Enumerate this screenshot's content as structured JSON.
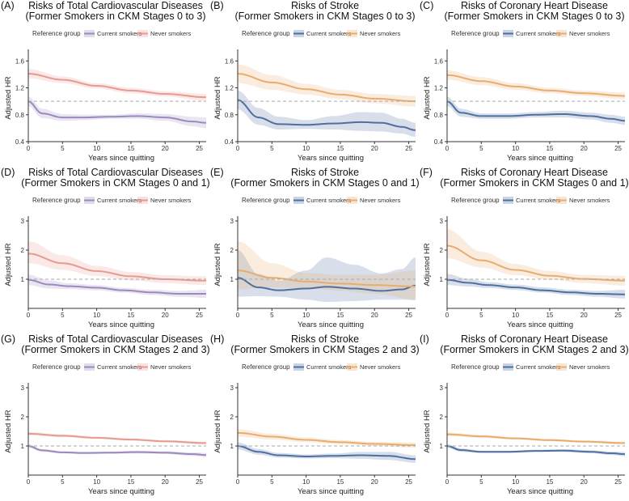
{
  "colors": {
    "purple": "#9c89bd",
    "salmon": "#e79a92",
    "blue": "#4f6fa0",
    "orange": "#e9ac6e",
    "reference_line": "#aaaaaa",
    "axis": "#333333"
  },
  "chart_data": [
    {
      "id": "A",
      "type": "line",
      "label": "(A)",
      "title": [
        "Risks of Total Cardiovascular Diseases",
        "(Former Smokers in CKM Stages 0 to 3)"
      ],
      "xlabel": "Years since quitting",
      "ylabel": "Adjusted HR",
      "xlim": [
        0,
        26
      ],
      "ylim": [
        0.4,
        1.7
      ],
      "xticks": [
        0,
        5,
        10,
        15,
        20,
        25
      ],
      "yticks": [
        0.4,
        0.8,
        1.2,
        1.6
      ],
      "ytick_labels": [
        "0.4",
        "0.8",
        "1.2",
        "1.6"
      ],
      "reference_y": 1.0,
      "legend_title": "Reference group",
      "series": [
        {
          "name": "Current smokers",
          "color": "#9c89bd",
          "x": [
            0,
            2,
            5,
            8,
            12,
            16,
            20,
            24,
            26
          ],
          "y": [
            1.0,
            0.82,
            0.76,
            0.76,
            0.77,
            0.78,
            0.76,
            0.7,
            0.68
          ],
          "lower": [
            0.93,
            0.75,
            0.71,
            0.72,
            0.74,
            0.74,
            0.71,
            0.63,
            0.6
          ],
          "upper": [
            1.07,
            0.89,
            0.81,
            0.8,
            0.8,
            0.82,
            0.81,
            0.77,
            0.76
          ]
        },
        {
          "name": "Never smokers",
          "color": "#e79a92",
          "x": [
            0,
            5,
            10,
            15,
            20,
            26
          ],
          "y": [
            1.41,
            1.32,
            1.23,
            1.16,
            1.11,
            1.06
          ],
          "lower": [
            1.34,
            1.27,
            1.19,
            1.12,
            1.07,
            1.01
          ],
          "upper": [
            1.48,
            1.37,
            1.27,
            1.2,
            1.15,
            1.11
          ]
        }
      ]
    },
    {
      "id": "B",
      "type": "line",
      "label": "(B)",
      "title": [
        "Risks of Stroke",
        "(Former Smokers in CKM Stages 0 to 3)"
      ],
      "xlabel": "Years since quitting",
      "ylabel": "Adjusted HR",
      "xlim": [
        0,
        26
      ],
      "ylim": [
        0.4,
        1.7
      ],
      "xticks": [
        0,
        5,
        10,
        15,
        20,
        25
      ],
      "yticks": [
        0.4,
        0.8,
        1.2,
        1.6
      ],
      "ytick_labels": [
        "0.4",
        "0.8",
        "1.2",
        "1.6"
      ],
      "reference_y": 1.0,
      "legend_title": "Reference group",
      "series": [
        {
          "name": "Current smokers",
          "color": "#4f6fa0",
          "x": [
            0,
            3,
            6,
            10,
            14,
            18,
            21,
            24,
            26
          ],
          "y": [
            1.02,
            0.76,
            0.66,
            0.65,
            0.67,
            0.69,
            0.68,
            0.62,
            0.57
          ],
          "lower": [
            0.88,
            0.65,
            0.58,
            0.59,
            0.58,
            0.56,
            0.55,
            0.52,
            0.47
          ],
          "upper": [
            1.16,
            0.9,
            0.77,
            0.72,
            0.78,
            0.84,
            0.83,
            0.74,
            0.68
          ]
        },
        {
          "name": "Never smokers",
          "color": "#e9ac6e",
          "x": [
            0,
            5,
            10,
            15,
            20,
            26
          ],
          "y": [
            1.41,
            1.28,
            1.18,
            1.1,
            1.04,
            1.0
          ],
          "lower": [
            1.27,
            1.17,
            1.1,
            1.03,
            0.97,
            0.92
          ],
          "upper": [
            1.55,
            1.39,
            1.26,
            1.17,
            1.11,
            1.08
          ]
        }
      ]
    },
    {
      "id": "C",
      "type": "line",
      "label": "(C)",
      "title": [
        "Risks of Coronary Heart Disease",
        "(Former Smokers in CKM Stages 0 to 3)"
      ],
      "xlabel": "Years since quitting",
      "ylabel": "Adjusted HR",
      "xlim": [
        0,
        26
      ],
      "ylim": [
        0.4,
        1.7
      ],
      "xticks": [
        0,
        5,
        10,
        15,
        20,
        25
      ],
      "yticks": [
        0.4,
        0.8,
        1.2,
        1.6
      ],
      "ytick_labels": [
        "0.4",
        "0.8",
        "1.2",
        "1.6"
      ],
      "reference_y": 1.0,
      "legend_title": "Reference group",
      "series": [
        {
          "name": "Current smokers",
          "color": "#4f6fa0",
          "x": [
            0,
            2,
            5,
            9,
            13,
            17,
            21,
            24,
            26
          ],
          "y": [
            1.0,
            0.83,
            0.78,
            0.78,
            0.8,
            0.81,
            0.78,
            0.74,
            0.71
          ],
          "lower": [
            0.93,
            0.77,
            0.74,
            0.74,
            0.76,
            0.76,
            0.73,
            0.68,
            0.65
          ],
          "upper": [
            1.07,
            0.89,
            0.82,
            0.82,
            0.84,
            0.86,
            0.83,
            0.8,
            0.77
          ]
        },
        {
          "name": "Never smokers",
          "color": "#e9ac6e",
          "x": [
            0,
            5,
            10,
            15,
            20,
            26
          ],
          "y": [
            1.39,
            1.3,
            1.22,
            1.16,
            1.12,
            1.08
          ],
          "lower": [
            1.32,
            1.24,
            1.17,
            1.12,
            1.08,
            1.03
          ],
          "upper": [
            1.46,
            1.36,
            1.27,
            1.2,
            1.16,
            1.13
          ]
        }
      ]
    },
    {
      "id": "D",
      "type": "line",
      "label": "(D)",
      "title": [
        "Risks of Total Cardiovascular Diseases",
        "(Former Smokers in CKM Stages 0 and 1)"
      ],
      "xlabel": "Years since quitting",
      "ylabel": "Adjusted HR",
      "xlim": [
        0,
        26
      ],
      "ylim": [
        0,
        3
      ],
      "xticks": [
        0,
        5,
        10,
        15,
        20,
        25
      ],
      "yticks": [
        1,
        2,
        3
      ],
      "ytick_labels": [
        "1",
        "2",
        "3"
      ],
      "reference_y": 1.0,
      "legend_title": "Reference group",
      "series": [
        {
          "name": "Current smokers",
          "color": "#9c89bd",
          "x": [
            0,
            3,
            6,
            10,
            14,
            18,
            22,
            26
          ],
          "y": [
            0.98,
            0.82,
            0.76,
            0.71,
            0.62,
            0.55,
            0.5,
            0.5
          ],
          "lower": [
            0.8,
            0.68,
            0.66,
            0.62,
            0.54,
            0.46,
            0.4,
            0.36
          ],
          "upper": [
            1.16,
            0.96,
            0.86,
            0.8,
            0.7,
            0.64,
            0.6,
            0.64
          ]
        },
        {
          "name": "Never smokers",
          "color": "#e79a92",
          "x": [
            0,
            5,
            10,
            15,
            20,
            26
          ],
          "y": [
            1.88,
            1.55,
            1.28,
            1.1,
            1.0,
            0.95
          ],
          "lower": [
            1.55,
            1.32,
            1.11,
            0.96,
            0.87,
            0.8
          ],
          "upper": [
            2.3,
            1.82,
            1.46,
            1.25,
            1.14,
            1.1
          ]
        }
      ]
    },
    {
      "id": "E",
      "type": "line",
      "label": "(E)",
      "title": [
        "Risks of Stroke",
        "(Former Smokers in CKM Stages 0 and 1)"
      ],
      "xlabel": "Years since quitting",
      "ylabel": "Adjusted HR",
      "xlim": [
        0,
        26
      ],
      "ylim": [
        0,
        3
      ],
      "xticks": [
        0,
        5,
        10,
        15,
        20,
        25
      ],
      "yticks": [
        1,
        2,
        3
      ],
      "ytick_labels": [
        "1",
        "2",
        "3"
      ],
      "reference_y": 1.0,
      "legend_title": "Reference group",
      "series": [
        {
          "name": "Current smokers",
          "color": "#4f6fa0",
          "x": [
            0,
            3,
            6,
            10,
            13,
            17,
            21,
            24,
            26
          ],
          "y": [
            1.05,
            0.72,
            0.62,
            0.68,
            0.74,
            0.68,
            0.6,
            0.65,
            0.78
          ],
          "lower": [
            0.4,
            0.42,
            0.4,
            0.3,
            0.22,
            0.25,
            0.3,
            0.3,
            0.28
          ],
          "upper": [
            2.0,
            1.18,
            0.95,
            1.3,
            1.75,
            1.5,
            1.2,
            1.35,
            1.75
          ]
        },
        {
          "name": "Never smokers",
          "color": "#e9ac6e",
          "x": [
            0,
            5,
            10,
            15,
            20,
            26
          ],
          "y": [
            1.3,
            1.05,
            0.92,
            0.85,
            0.8,
            0.75
          ],
          "lower": [
            0.65,
            0.72,
            0.7,
            0.6,
            0.5,
            0.3
          ],
          "upper": [
            2.3,
            1.55,
            1.22,
            1.15,
            1.15,
            1.3
          ]
        }
      ]
    },
    {
      "id": "F",
      "type": "line",
      "label": "(F)",
      "title": [
        "Risks of Coronary Heart Disease",
        "(Former Smokers in CKM Stages 0 and 1)"
      ],
      "xlabel": "Years since quitting",
      "ylabel": "Adjusted HR",
      "xlim": [
        0,
        26
      ],
      "ylim": [
        0,
        3
      ],
      "xticks": [
        0,
        5,
        10,
        15,
        20,
        25
      ],
      "yticks": [
        1,
        2,
        3
      ],
      "ytick_labels": [
        "1",
        "2",
        "3"
      ],
      "reference_y": 1.0,
      "legend_title": "Reference group",
      "series": [
        {
          "name": "Current smokers",
          "color": "#4f6fa0",
          "x": [
            0,
            3,
            6,
            10,
            14,
            18,
            22,
            26
          ],
          "y": [
            0.98,
            0.88,
            0.8,
            0.72,
            0.62,
            0.55,
            0.5,
            0.48
          ],
          "lower": [
            0.8,
            0.75,
            0.7,
            0.63,
            0.54,
            0.46,
            0.4,
            0.34
          ],
          "upper": [
            1.18,
            1.02,
            0.9,
            0.82,
            0.72,
            0.64,
            0.6,
            0.64
          ]
        },
        {
          "name": "Never smokers",
          "color": "#e9ac6e",
          "x": [
            0,
            5,
            10,
            15,
            20,
            26
          ],
          "y": [
            2.15,
            1.65,
            1.32,
            1.12,
            1.01,
            0.95
          ],
          "lower": [
            1.72,
            1.4,
            1.14,
            0.98,
            0.87,
            0.78
          ],
          "upper": [
            2.72,
            1.95,
            1.52,
            1.28,
            1.15,
            1.12
          ]
        }
      ]
    },
    {
      "id": "G",
      "type": "line",
      "label": "(G)",
      "title": [
        "Risks of Total Cardiovascular Diseases",
        "(Former Smokers in CKM Stages 2 and 3)"
      ],
      "xlabel": "Years since quitting",
      "ylabel": "Adjusted HR",
      "xlim": [
        0,
        26
      ],
      "ylim": [
        0,
        3
      ],
      "xticks": [
        0,
        5,
        10,
        15,
        20,
        25
      ],
      "yticks": [
        1,
        2,
        3
      ],
      "ytick_labels": [
        "1",
        "2",
        "3"
      ],
      "reference_y": 1.0,
      "legend_title": "Reference group",
      "series": [
        {
          "name": "Current smokers",
          "color": "#9c89bd",
          "x": [
            0,
            2,
            5,
            8,
            12,
            16,
            20,
            24,
            26
          ],
          "y": [
            1.0,
            0.85,
            0.78,
            0.76,
            0.77,
            0.79,
            0.77,
            0.72,
            0.69
          ],
          "lower": [
            0.94,
            0.8,
            0.74,
            0.72,
            0.73,
            0.74,
            0.72,
            0.66,
            0.62
          ],
          "upper": [
            1.06,
            0.9,
            0.82,
            0.8,
            0.81,
            0.84,
            0.82,
            0.78,
            0.76
          ]
        },
        {
          "name": "Never smokers",
          "color": "#e79a92",
          "x": [
            0,
            5,
            10,
            15,
            20,
            26
          ],
          "y": [
            1.42,
            1.35,
            1.28,
            1.22,
            1.16,
            1.1
          ],
          "lower": [
            1.36,
            1.3,
            1.24,
            1.18,
            1.12,
            1.05
          ],
          "upper": [
            1.48,
            1.4,
            1.32,
            1.26,
            1.2,
            1.15
          ]
        }
      ]
    },
    {
      "id": "H",
      "type": "line",
      "label": "(H)",
      "title": [
        "Risks of Stroke",
        "(Former Smokers in CKM Stages 2 and 3)"
      ],
      "xlabel": "Years since quitting",
      "ylabel": "Adjusted HR",
      "xlim": [
        0,
        26
      ],
      "ylim": [
        0,
        3
      ],
      "xticks": [
        0,
        5,
        10,
        15,
        20,
        25
      ],
      "yticks": [
        1,
        2,
        3
      ],
      "ytick_labels": [
        "1",
        "2",
        "3"
      ],
      "reference_y": 1.0,
      "legend_title": "Reference group",
      "series": [
        {
          "name": "Current smokers",
          "color": "#4f6fa0",
          "x": [
            0,
            3,
            6,
            10,
            14,
            18,
            22,
            26
          ],
          "y": [
            1.0,
            0.8,
            0.68,
            0.64,
            0.66,
            0.68,
            0.66,
            0.55
          ],
          "lower": [
            0.88,
            0.7,
            0.6,
            0.57,
            0.58,
            0.56,
            0.52,
            0.42
          ],
          "upper": [
            1.12,
            0.9,
            0.76,
            0.71,
            0.74,
            0.8,
            0.8,
            0.68
          ]
        },
        {
          "name": "Never smokers",
          "color": "#e9ac6e",
          "x": [
            0,
            5,
            10,
            15,
            20,
            26
          ],
          "y": [
            1.45,
            1.32,
            1.21,
            1.13,
            1.07,
            1.03
          ],
          "lower": [
            1.32,
            1.22,
            1.13,
            1.06,
            1.0,
            0.94
          ],
          "upper": [
            1.58,
            1.42,
            1.29,
            1.2,
            1.14,
            1.12
          ]
        }
      ]
    },
    {
      "id": "I",
      "type": "line",
      "label": "(I)",
      "title": [
        "Risks of Coronary Heart Disease",
        "(Former Smokers in CKM Stages 2 and 3)"
      ],
      "xlabel": "Years since quitting",
      "ylabel": "Adjusted HR",
      "xlim": [
        0,
        26
      ],
      "ylim": [
        0,
        3
      ],
      "xticks": [
        0,
        5,
        10,
        15,
        20,
        25
      ],
      "yticks": [
        1,
        2,
        3
      ],
      "ytick_labels": [
        "1",
        "2",
        "3"
      ],
      "reference_y": 1.0,
      "legend_title": "Reference group",
      "series": [
        {
          "name": "Current smokers",
          "color": "#4f6fa0",
          "x": [
            0,
            2,
            5,
            9,
            13,
            17,
            21,
            24,
            26
          ],
          "y": [
            1.0,
            0.86,
            0.8,
            0.8,
            0.83,
            0.84,
            0.8,
            0.75,
            0.72
          ],
          "lower": [
            0.94,
            0.8,
            0.76,
            0.76,
            0.79,
            0.79,
            0.75,
            0.69,
            0.65
          ],
          "upper": [
            1.06,
            0.92,
            0.84,
            0.84,
            0.87,
            0.89,
            0.85,
            0.81,
            0.79
          ]
        },
        {
          "name": "Never smokers",
          "color": "#e9ac6e",
          "x": [
            0,
            5,
            10,
            15,
            20,
            26
          ],
          "y": [
            1.4,
            1.33,
            1.26,
            1.2,
            1.15,
            1.1
          ],
          "lower": [
            1.34,
            1.28,
            1.22,
            1.16,
            1.11,
            1.05
          ],
          "upper": [
            1.46,
            1.38,
            1.3,
            1.24,
            1.19,
            1.15
          ]
        }
      ]
    }
  ]
}
